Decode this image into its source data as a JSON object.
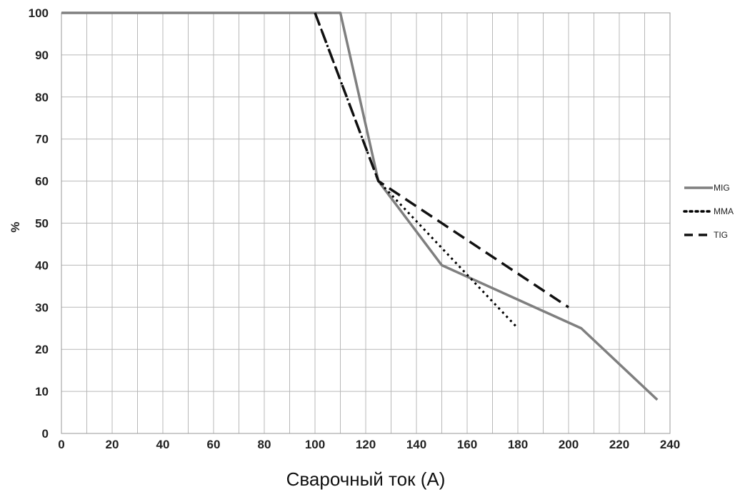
{
  "chart_data": {
    "type": "line",
    "xlabel": "Сварочный ток (A)",
    "ylabel": "%",
    "xlim": [
      0,
      240
    ],
    "ylim": [
      0,
      100
    ],
    "x_ticks": [
      0,
      20,
      40,
      60,
      80,
      100,
      120,
      140,
      160,
      180,
      200,
      220,
      240
    ],
    "y_ticks": [
      0,
      10,
      20,
      30,
      40,
      50,
      60,
      70,
      80,
      90,
      100
    ],
    "x_grid_step": 10,
    "y_grid_step": 10,
    "grid": true,
    "legend_position": "right",
    "series": [
      {
        "name": "MIG",
        "style": "solid",
        "color": "#7f7f7f",
        "points": [
          [
            0,
            100
          ],
          [
            110,
            100
          ],
          [
            125,
            60
          ],
          [
            150,
            40
          ],
          [
            205,
            25
          ],
          [
            235,
            8
          ]
        ]
      },
      {
        "name": "MMA",
        "style": "dotted",
        "color": "#000000",
        "points": [
          [
            100,
            100
          ],
          [
            125,
            60
          ],
          [
            180,
            25
          ]
        ]
      },
      {
        "name": "TIG",
        "style": "dashed",
        "color": "#111111",
        "points": [
          [
            100,
            100
          ],
          [
            125,
            60
          ],
          [
            200,
            30
          ]
        ]
      }
    ]
  }
}
